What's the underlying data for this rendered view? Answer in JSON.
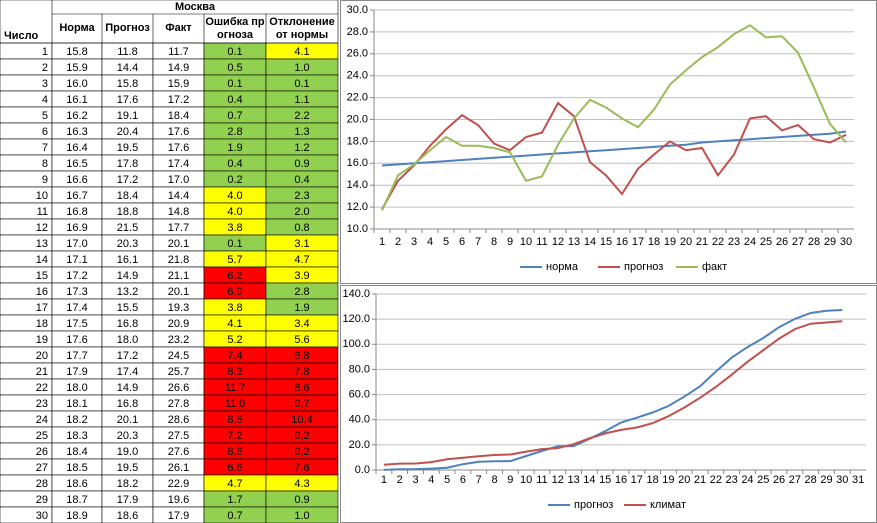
{
  "table": {
    "title": "Москва",
    "headers": [
      "Число",
      "Норма",
      "Прогноз",
      "Факт",
      "Ошибка прогноза",
      "Отклонение от нормы"
    ],
    "rows": [
      [
        "1",
        "15.8",
        "11.8",
        "11.7",
        "0.1",
        "4.1"
      ],
      [
        "2",
        "15.9",
        "14.4",
        "14.9",
        "0.5",
        "1.0"
      ],
      [
        "3",
        "16.0",
        "15.8",
        "15.9",
        "0.1",
        "0.1"
      ],
      [
        "4",
        "16.1",
        "17.6",
        "17.2",
        "0.4",
        "1.1"
      ],
      [
        "5",
        "16.2",
        "19.1",
        "18.4",
        "0.7",
        "2.2"
      ],
      [
        "6",
        "16.3",
        "20.4",
        "17.6",
        "2.8",
        "1.3"
      ],
      [
        "7",
        "16.4",
        "19.5",
        "17.6",
        "1.9",
        "1.2"
      ],
      [
        "8",
        "16.5",
        "17.8",
        "17.4",
        "0.4",
        "0.9"
      ],
      [
        "9",
        "16.6",
        "17.2",
        "17.0",
        "0.2",
        "0.4"
      ],
      [
        "10",
        "16.7",
        "18.4",
        "14.4",
        "4.0",
        "2.3"
      ],
      [
        "11",
        "16.8",
        "18.8",
        "14.8",
        "4.0",
        "2.0"
      ],
      [
        "12",
        "16.9",
        "21.5",
        "17.7",
        "3.8",
        "0.8"
      ],
      [
        "13",
        "17.0",
        "20.3",
        "20.1",
        "0.1",
        "3.1"
      ],
      [
        "14",
        "17.1",
        "16.1",
        "21.8",
        "5.7",
        "4.7"
      ],
      [
        "15",
        "17.2",
        "14.9",
        "21.1",
        "6.2",
        "3.9"
      ],
      [
        "16",
        "17.3",
        "13.2",
        "20.1",
        "6.9",
        "2.8"
      ],
      [
        "17",
        "17.4",
        "15.5",
        "19.3",
        "3.8",
        "1.9"
      ],
      [
        "18",
        "17.5",
        "16.8",
        "20.9",
        "4.1",
        "3.4"
      ],
      [
        "19",
        "17.6",
        "18.0",
        "23.2",
        "5.2",
        "5.6"
      ],
      [
        "20",
        "17.7",
        "17.2",
        "24.5",
        "7.4",
        "6.8"
      ],
      [
        "21",
        "17.9",
        "17.4",
        "25.7",
        "8.3",
        "7.8"
      ],
      [
        "22",
        "18.0",
        "14.9",
        "26.6",
        "11.7",
        "8.6"
      ],
      [
        "23",
        "18.1",
        "16.8",
        "27.8",
        "11.0",
        "9.7"
      ],
      [
        "24",
        "18.2",
        "20.1",
        "28.6",
        "8.5",
        "10.4"
      ],
      [
        "25",
        "18.3",
        "20.3",
        "27.5",
        "7.2",
        "9.2"
      ],
      [
        "26",
        "18.4",
        "19.0",
        "27.6",
        "8.6",
        "9.2"
      ],
      [
        "27",
        "18.5",
        "19.5",
        "26.1",
        "6.6",
        "7.6"
      ],
      [
        "28",
        "18.6",
        "18.2",
        "22.9",
        "4.7",
        "4.3"
      ],
      [
        "29",
        "18.7",
        "17.9",
        "19.6",
        "1.7",
        "0.9"
      ],
      [
        "30",
        "18.9",
        "18.6",
        "17.9",
        "0.7",
        "1.0"
      ]
    ],
    "error_colors": [
      "#92d050",
      "#92d050",
      "#92d050",
      "#92d050",
      "#92d050",
      "#92d050",
      "#92d050",
      "#92d050",
      "#92d050",
      "#ffff00",
      "#ffff00",
      "#ffff00",
      "#92d050",
      "#ffff00",
      "#ff0000",
      "#ff0000",
      "#ffff00",
      "#ffff00",
      "#ffff00",
      "#ff0000",
      "#ff0000",
      "#ff0000",
      "#ff0000",
      "#ff0000",
      "#ff0000",
      "#ff0000",
      "#ff0000",
      "#ffff00",
      "#92d050",
      "#92d050"
    ],
    "deviation_colors": [
      "#ffff00",
      "#92d050",
      "#92d050",
      "#92d050",
      "#92d050",
      "#92d050",
      "#92d050",
      "#92d050",
      "#92d050",
      "#92d050",
      "#92d050",
      "#92d050",
      "#ffff00",
      "#ffff00",
      "#ffff00",
      "#92d050",
      "#92d050",
      "#ffff00",
      "#ffff00",
      "#ff0000",
      "#ff0000",
      "#ff0000",
      "#ff0000",
      "#ff0000",
      "#ff0000",
      "#ff0000",
      "#ff0000",
      "#ffff00",
      "#92d050",
      "#92d050"
    ]
  },
  "chart_data": [
    {
      "type": "line",
      "categories": [
        1,
        2,
        3,
        4,
        5,
        6,
        7,
        8,
        9,
        10,
        11,
        12,
        13,
        14,
        15,
        16,
        17,
        18,
        19,
        20,
        21,
        22,
        23,
        24,
        25,
        26,
        27,
        28,
        29,
        30
      ],
      "series": [
        {
          "name": "норма",
          "color": "#4f81bd",
          "values": [
            15.8,
            15.9,
            16.0,
            16.1,
            16.2,
            16.3,
            16.4,
            16.5,
            16.6,
            16.7,
            16.8,
            16.9,
            17.0,
            17.1,
            17.2,
            17.3,
            17.4,
            17.5,
            17.6,
            17.7,
            17.9,
            18.0,
            18.1,
            18.2,
            18.3,
            18.4,
            18.5,
            18.6,
            18.7,
            18.9
          ]
        },
        {
          "name": "прогноз",
          "color": "#c0504d",
          "values": [
            11.8,
            14.4,
            15.8,
            17.6,
            19.1,
            20.4,
            19.5,
            17.8,
            17.2,
            18.4,
            18.8,
            21.5,
            20.3,
            16.1,
            14.9,
            13.2,
            15.5,
            16.8,
            18.0,
            17.2,
            17.4,
            14.9,
            16.8,
            20.1,
            20.3,
            19.0,
            19.5,
            18.2,
            17.9,
            18.6
          ]
        },
        {
          "name": "факт",
          "color": "#9bbb59",
          "values": [
            11.7,
            14.9,
            15.9,
            17.2,
            18.4,
            17.6,
            17.6,
            17.4,
            17.0,
            14.4,
            14.8,
            17.7,
            20.1,
            21.8,
            21.1,
            20.1,
            19.3,
            20.9,
            23.2,
            24.5,
            25.7,
            26.6,
            27.8,
            28.6,
            27.5,
            27.6,
            26.1,
            22.9,
            19.6,
            17.9
          ]
        }
      ],
      "ylim": [
        10,
        30
      ],
      "yticks": [
        {
          "value": 10,
          "label": "10.0"
        },
        {
          "value": 12,
          "label": "12.0"
        },
        {
          "value": 14,
          "label": "14.0"
        },
        {
          "value": 16,
          "label": "16.0"
        },
        {
          "value": 18,
          "label": "18.0"
        },
        {
          "value": 20,
          "label": "20.0"
        },
        {
          "value": 22,
          "label": "22.0"
        },
        {
          "value": 24,
          "label": "24.0"
        },
        {
          "value": 26,
          "label": "26.0"
        },
        {
          "value": 28,
          "label": "28.0"
        },
        {
          "value": 30,
          "label": "30.0"
        }
      ],
      "grid": true,
      "legend": "bottom"
    },
    {
      "type": "line",
      "categories": [
        1,
        2,
        3,
        4,
        5,
        6,
        7,
        8,
        9,
        10,
        11,
        12,
        13,
        14,
        15,
        16,
        17,
        18,
        19,
        20,
        21,
        22,
        23,
        24,
        25,
        26,
        27,
        28,
        29,
        30,
        31
      ],
      "series": [
        {
          "name": "прогноз",
          "color": "#4f81bd",
          "values": [
            0.1,
            0.6,
            0.7,
            1.1,
            1.8,
            4.6,
            6.5,
            6.9,
            7.1,
            11.1,
            15.1,
            18.9,
            19.0,
            24.7,
            30.9,
            37.8,
            41.6,
            45.7,
            50.9,
            58.3,
            66.6,
            78.3,
            89.3,
            97.8,
            105.0,
            113.6,
            120.2,
            124.9,
            126.6,
            127.3,
            null
          ]
        },
        {
          "name": "климат",
          "color": "#c0504d",
          "values": [
            4.1,
            5.1,
            5.2,
            6.3,
            8.5,
            9.8,
            11.0,
            11.9,
            12.3,
            14.6,
            16.6,
            17.4,
            20.5,
            25.2,
            29.1,
            31.9,
            33.8,
            37.2,
            42.8,
            49.6,
            57.4,
            66.0,
            75.7,
            86.1,
            95.3,
            104.5,
            112.1,
            116.4,
            117.3,
            118.3,
            null
          ]
        }
      ],
      "ylim": [
        0,
        140
      ],
      "yticks": [
        {
          "value": 0,
          "label": "0.0"
        },
        {
          "value": 20,
          "label": "20.0"
        },
        {
          "value": 40,
          "label": "40.0"
        },
        {
          "value": 60,
          "label": "60.0"
        },
        {
          "value": 80,
          "label": "80.0"
        },
        {
          "value": 100,
          "label": "100.0"
        },
        {
          "value": 120,
          "label": "120.0"
        },
        {
          "value": 140,
          "label": "140.0"
        }
      ],
      "grid": true,
      "legend": "bottom"
    }
  ]
}
